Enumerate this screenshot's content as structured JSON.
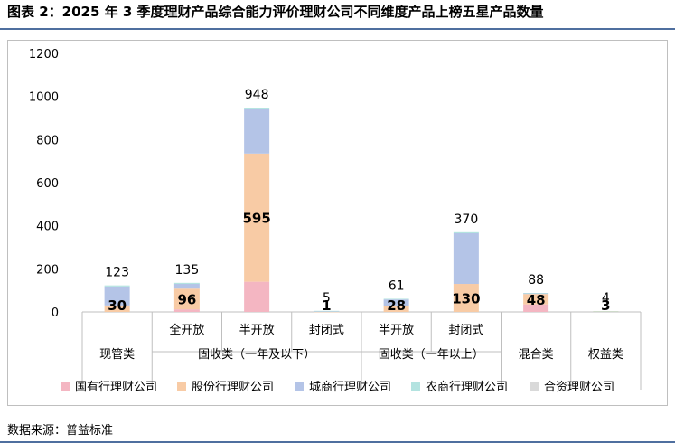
{
  "title": "图表 2：2025 年 3 季度理财产品综合能力评价理财公司不同维度产品上榜五星产品数量",
  "source": "数据来源：普益标准",
  "chart_data": {
    "type": "bar",
    "stacked": true,
    "ylim": [
      0,
      1200
    ],
    "yticks": [
      0,
      200,
      400,
      600,
      800,
      1000,
      1200
    ],
    "grid": false,
    "legend_position": "bottom",
    "categories": [
      {
        "sub": "",
        "group": "现管类"
      },
      {
        "sub": "全开放",
        "group": "固收类（一年及以下）"
      },
      {
        "sub": "半开放",
        "group": "固收类（一年及以下）"
      },
      {
        "sub": "封闭式",
        "group": "固收类（一年及以下）"
      },
      {
        "sub": "半开放",
        "group": "固收类（一年以上）"
      },
      {
        "sub": "封闭式",
        "group": "固收类（一年以上）"
      },
      {
        "sub": "",
        "group": "混合类"
      },
      {
        "sub": "",
        "group": "权益类"
      }
    ],
    "groups": [
      "现管类",
      "固收类（一年及以下）",
      "固收类（一年以上）",
      "混合类",
      "权益类"
    ],
    "totals": [
      123,
      135,
      948,
      5,
      61,
      370,
      88,
      4
    ],
    "inner_labels": [
      "30",
      "96",
      "595",
      "1",
      "28",
      "130",
      "48",
      "3"
    ],
    "series": [
      {
        "name": "国有行理财公司",
        "color": "#f4b6c2",
        "values": [
          0,
          12,
          140,
          0,
          0,
          0,
          35,
          0
        ]
      },
      {
        "name": "股份行理财公司",
        "color": "#f8cba5",
        "values": [
          30,
          96,
          595,
          1,
          28,
          130,
          48,
          3
        ]
      },
      {
        "name": "城商行理财公司",
        "color": "#b4c4e7",
        "values": [
          88,
          22,
          205,
          2,
          30,
          235,
          3,
          0
        ]
      },
      {
        "name": "农商行理财公司",
        "color": "#b3e3e0",
        "values": [
          5,
          5,
          8,
          2,
          3,
          5,
          2,
          1
        ]
      },
      {
        "name": "合资理财公司",
        "color": "#d9d9d9",
        "values": [
          0,
          0,
          0,
          0,
          0,
          0,
          0,
          0
        ]
      }
    ]
  }
}
